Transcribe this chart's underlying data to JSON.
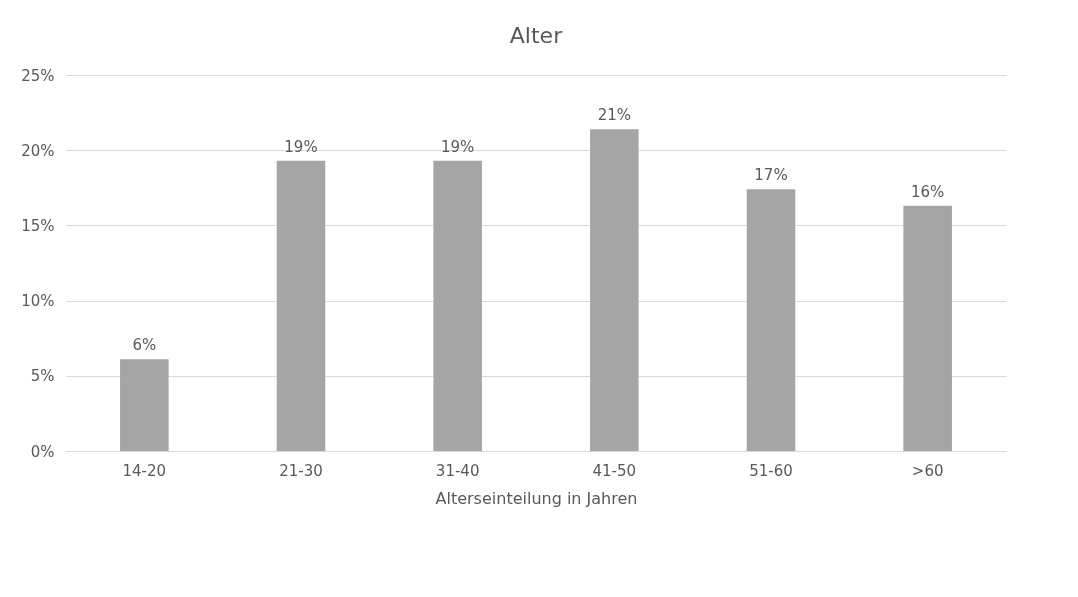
{
  "chart_data": {
    "type": "bar",
    "title": "Alter",
    "xlabel": "Alterseinteilung in Jahren",
    "categories": [
      "14-20",
      "21-30",
      "31-40",
      "41-50",
      "51-60",
      ">60"
    ],
    "values": [
      6.1,
      19.3,
      19.3,
      21.4,
      17.4,
      16.3
    ],
    "value_labels": [
      "6%",
      "19%",
      "19%",
      "21%",
      "17%",
      "16%"
    ],
    "color": "#a5a5a5",
    "ylim": [
      0,
      25
    ],
    "yticks": [
      {
        "value": 0,
        "label": "0%"
      },
      {
        "value": 5,
        "label": "5%"
      },
      {
        "value": 10,
        "label": "10%"
      },
      {
        "value": 15,
        "label": "15%"
      },
      {
        "value": 20,
        "label": "20%"
      },
      {
        "value": 25,
        "label": "25%"
      }
    ],
    "grid": "y"
  }
}
